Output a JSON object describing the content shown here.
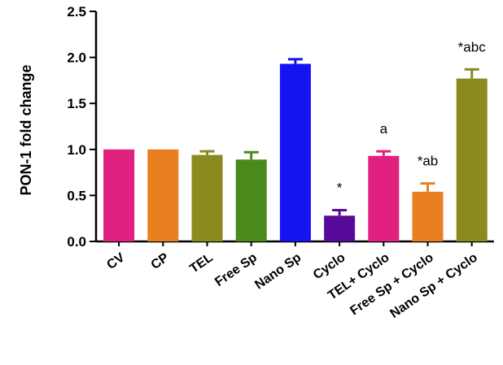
{
  "chart_data": {
    "type": "bar",
    "title": "",
    "xlabel": "",
    "ylabel": "PON-1 fold change",
    "ylim": [
      0,
      2.5
    ],
    "yticks": [
      "0.0",
      "0.5",
      "1.0",
      "1.5",
      "2.0",
      "2.5"
    ],
    "grid": false,
    "categories": [
      "CV",
      "CP",
      "TEL",
      "Free Sp",
      "Nano Sp",
      "Cyclo",
      "TEL+ Cyclo",
      "Free Sp + Cyclo",
      "Nano Sp + Cyclo"
    ],
    "values": [
      1.0,
      1.0,
      0.94,
      0.89,
      1.93,
      0.28,
      0.93,
      0.54,
      1.77
    ],
    "errors": [
      0.0,
      0.0,
      0.04,
      0.08,
      0.05,
      0.06,
      0.05,
      0.09,
      0.1
    ],
    "annotations": [
      "",
      "",
      "",
      "",
      "",
      "*",
      "a",
      "*ab",
      "*abc"
    ],
    "colors": [
      "#e0217f",
      "#e8801f",
      "#8a8a1f",
      "#4a8a1a",
      "#1414f0",
      "#5a0a9a",
      "#e0217f",
      "#e8801f",
      "#8a8a1f"
    ]
  }
}
